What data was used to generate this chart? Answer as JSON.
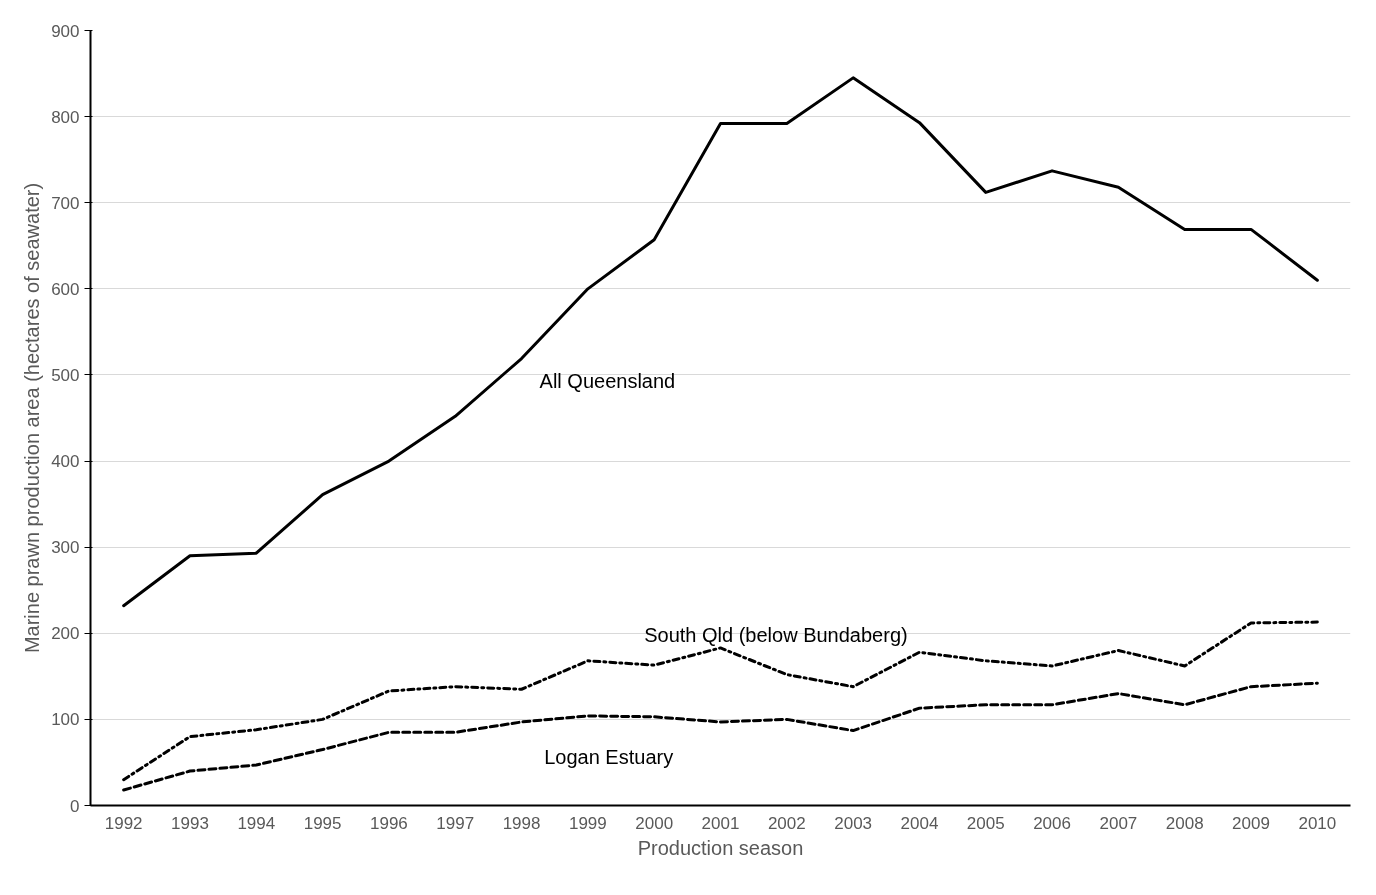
{
  "chart_data": {
    "type": "line",
    "xlabel": "Production season",
    "ylabel": "Marine prawn production area (hectares of seawater)",
    "categories": [
      "1992",
      "1993",
      "1994",
      "1995",
      "1996",
      "1997",
      "1998",
      "1999",
      "2000",
      "2001",
      "2002",
      "2003",
      "2004",
      "2005",
      "2006",
      "2007",
      "2008",
      "2009",
      "2010"
    ],
    "ylim": [
      0,
      900
    ],
    "yticks": [
      0,
      100,
      200,
      300,
      400,
      500,
      600,
      700,
      800,
      900
    ],
    "grid": "y",
    "marker": "none",
    "series": [
      {
        "name": "All Queensland",
        "color": "#000000",
        "line_style": "solid",
        "values": [
          232,
          290,
          293,
          361,
          400,
          452,
          519,
          600,
          657,
          792,
          792,
          845,
          793,
          712,
          737,
          718,
          669,
          669,
          610
        ]
      },
      {
        "name": "South Qld (below Bundaberg)",
        "color": "#000000",
        "line_style": "dashdot",
        "values": [
          30,
          80,
          88,
          100,
          133,
          138,
          135,
          168,
          163,
          183,
          152,
          138,
          178,
          168,
          162,
          180,
          162,
          212,
          213
        ]
      },
      {
        "name": "Logan Estuary",
        "color": "#000000",
        "line_style": "dashed",
        "values": [
          18,
          40,
          47,
          65,
          85,
          85,
          97,
          104,
          103,
          97,
          100,
          87,
          113,
          117,
          117,
          130,
          117,
          138,
          142
        ]
      }
    ]
  }
}
